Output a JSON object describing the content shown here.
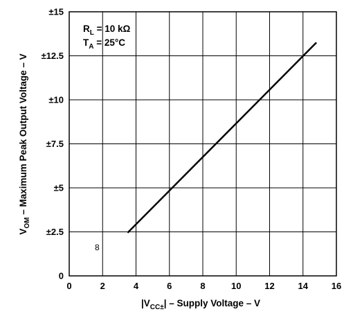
{
  "chart_data": {
    "type": "line",
    "xlabel": "|V",
    "xlabel_sub": "CC±",
    "xlabel_tail": "| – Supply Voltage – V",
    "ylabel": "V",
    "ylabel_sub": "OM",
    "ylabel_tail": " – Maximum Peak Output Voltage – V",
    "xlim": [
      0,
      16
    ],
    "ylim": [
      0,
      15
    ],
    "x_ticks": [
      0,
      2,
      4,
      6,
      8,
      10,
      12,
      14,
      16
    ],
    "x_tick_labels": [
      "0",
      "2",
      "4",
      "6",
      "8",
      "10",
      "12",
      "14",
      "16"
    ],
    "y_ticks": [
      0,
      2.5,
      5,
      7.5,
      10,
      12.5,
      15
    ],
    "y_tick_labels": [
      "0",
      "±2.5",
      "±5",
      "±7.5",
      "±10",
      "±12.5",
      "±15"
    ],
    "grid": true,
    "annotation": {
      "line1_main": "R",
      "line1_sub": "L",
      "line1_tail": " = 10 kΩ",
      "line2_main": "T",
      "line2_sub": "A",
      "line2_tail": " = 25°C"
    },
    "figure_mark": "8",
    "series": [
      {
        "x": [
          3.5,
          14.8
        ],
        "y": [
          2.45,
          13.25
        ],
        "color": "#000000"
      }
    ]
  }
}
